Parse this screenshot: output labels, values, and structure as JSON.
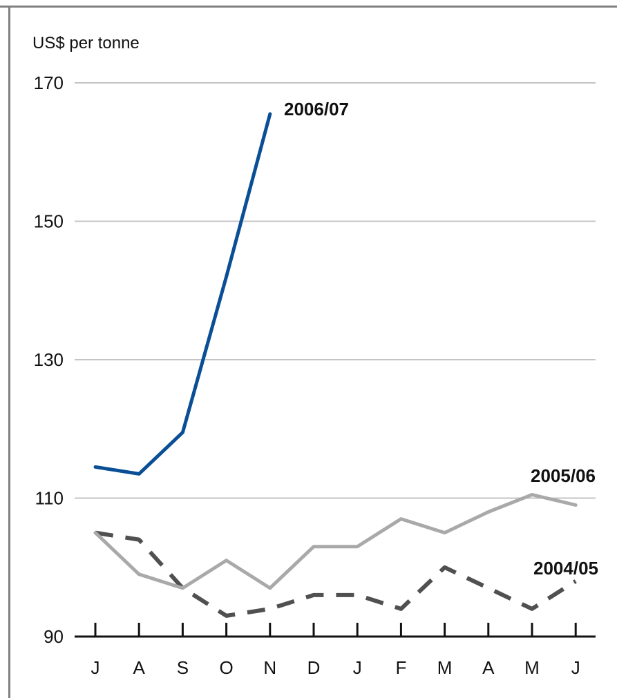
{
  "chart_data": {
    "type": "line",
    "ylabel": "US$ per tonne",
    "ylim": [
      90,
      170
    ],
    "yticks": [
      90,
      110,
      130,
      150,
      170
    ],
    "categories": [
      "J",
      "A",
      "S",
      "O",
      "N",
      "D",
      "J",
      "F",
      "M",
      "A",
      "M",
      "J"
    ],
    "grid": "horizontal",
    "series": [
      {
        "name": "2006/07",
        "color": "#0a4f96",
        "style": "solid",
        "values": [
          114.5,
          113.5,
          119.5,
          142,
          165.5,
          null,
          null,
          null,
          null,
          null,
          null,
          null
        ]
      },
      {
        "name": "2005/06",
        "color": "#a9a9a9",
        "style": "solid",
        "values": [
          105,
          99,
          97,
          101,
          97,
          103,
          103,
          107,
          105,
          108,
          110.5,
          109
        ]
      },
      {
        "name": "2004/05",
        "color": "#505050",
        "style": "dashed",
        "values": [
          105,
          104,
          97,
          93,
          94,
          96,
          96,
          94,
          100,
          97,
          94,
          98
        ]
      }
    ]
  }
}
